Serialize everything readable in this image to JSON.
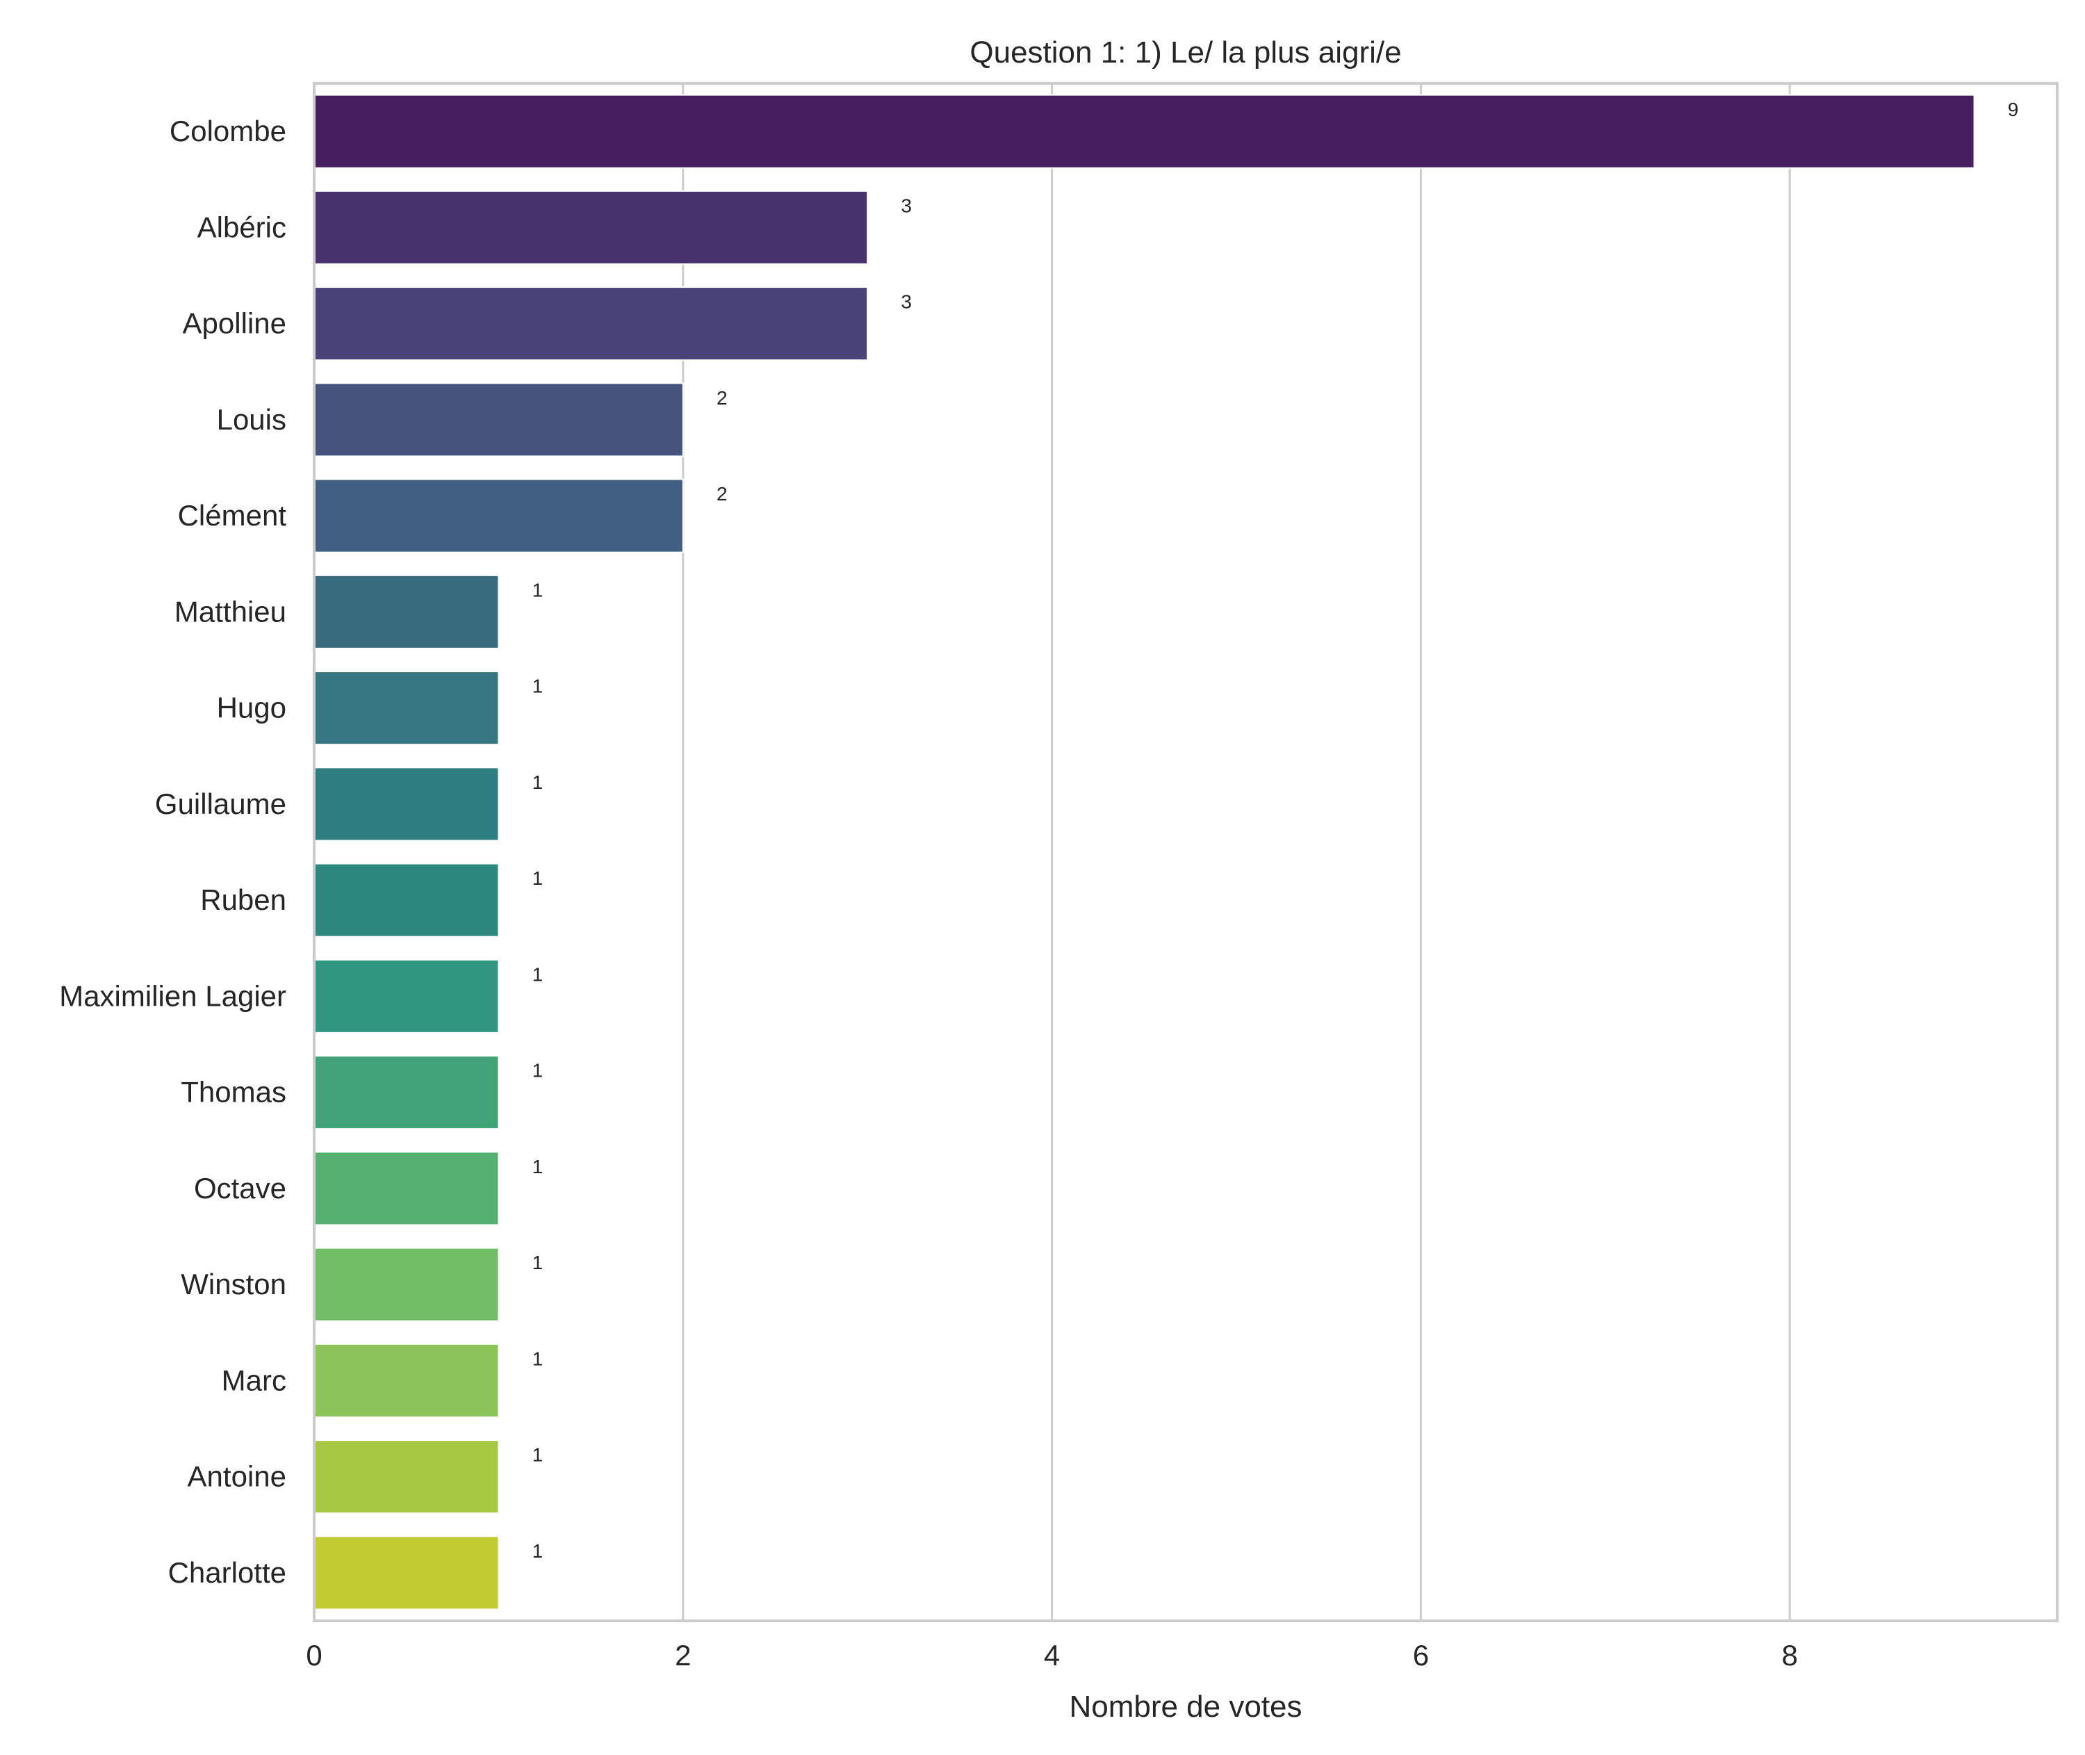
{
  "chart_data": {
    "type": "bar",
    "orientation": "horizontal",
    "title": "Question 1: 1) Le/ la plus aigri/e",
    "xlabel": "Nombre de votes",
    "ylabel": "",
    "categories": [
      "Colombe",
      "Albéric",
      "Apolline",
      "Louis",
      "Clément",
      "Matthieu",
      "Hugo",
      "Guillaume",
      "Ruben",
      "Maximilien Lagier",
      "Thomas",
      "Octave",
      "Winston",
      "Marc",
      "Antoine",
      "Charlotte"
    ],
    "values": [
      9,
      3,
      3,
      2,
      2,
      1,
      1,
      1,
      1,
      1,
      1,
      1,
      1,
      1,
      1,
      1
    ],
    "data_labels": [
      "9",
      "3",
      "3",
      "2",
      "2",
      "1",
      "1",
      "1",
      "1",
      "1",
      "1",
      "1",
      "1",
      "1",
      "1",
      "1"
    ],
    "xlim": [
      0,
      9.45
    ],
    "xticks": [
      0,
      2,
      4,
      6,
      8
    ],
    "xtick_labels": [
      "0",
      "2",
      "4",
      "6",
      "8"
    ],
    "grid": "vertical",
    "colors": [
      "#471f5e",
      "#48326e",
      "#4a437a",
      "#46537d",
      "#415f82",
      "#386a7d",
      "#357680",
      "#2e7d80",
      "#2d8880",
      "#319680",
      "#41a377",
      "#55b16f",
      "#71be67",
      "#8bc55a",
      "#a6c843",
      "#c2cb31"
    ]
  }
}
